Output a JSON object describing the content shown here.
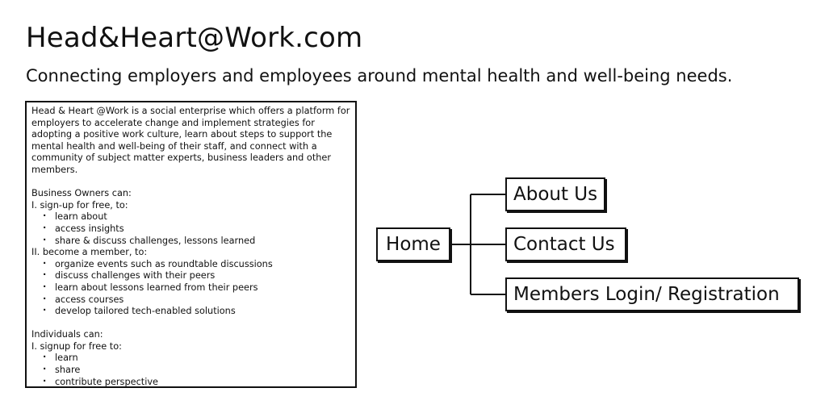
{
  "header": {
    "title": "Head&Heart@Work.com",
    "tagline": "Connecting employers and employees around mental health and well-being needs."
  },
  "description": {
    "intro": "Head & Heart @Work is a social enterprise which offers a platform for employers to accelerate change and implement strategies for adopting a positive work culture,  learn about steps to support the mental health and well-being of their staff, and connect with a community of subject matter experts, business leaders and other members.",
    "business_heading": "Business Owners can:",
    "business_signup_heading": "I. sign-up for free, to:",
    "business_signup_items": [
      "learn about",
      "access insights",
      "share & discuss challenges, lessons learned"
    ],
    "business_member_heading": "II. become a member, to:",
    "business_member_items": [
      "organize events such as roundtable discussions",
      "discuss challenges with their peers",
      "learn about lessons learned from their peers",
      "access courses",
      "develop tailored tech-enabled solutions"
    ],
    "individuals_heading": "Individuals can:",
    "individuals_signup_heading": "I. signup for free to:",
    "individuals_items": [
      "learn",
      "share",
      "contribute perspective"
    ]
  },
  "sitemap": {
    "root": "Home",
    "children": [
      "About Us",
      "Contact Us",
      "Members Login/ Registration"
    ]
  }
}
